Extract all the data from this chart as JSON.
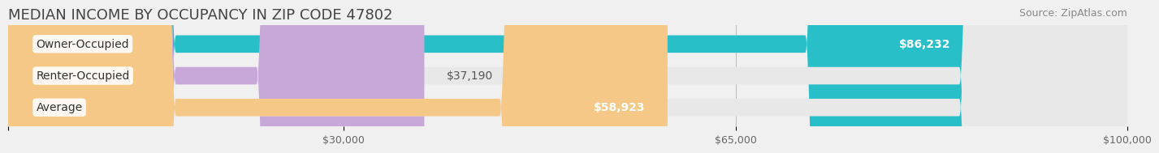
{
  "title": "MEDIAN INCOME BY OCCUPANCY IN ZIP CODE 47802",
  "source": "Source: ZipAtlas.com",
  "categories": [
    "Owner-Occupied",
    "Renter-Occupied",
    "Average"
  ],
  "values": [
    86232,
    37190,
    58923
  ],
  "bar_colors": [
    "#29bfc8",
    "#c8a8d8",
    "#f5c888"
  ],
  "label_colors": [
    "#ffffff",
    "#555555",
    "#555555"
  ],
  "value_labels": [
    "$86,232",
    "$37,190",
    "$58,923"
  ],
  "xlim": [
    0,
    100000
  ],
  "xticks": [
    0,
    30000,
    65000,
    100000
  ],
  "xtick_labels": [
    "",
    "$30,000",
    "$65,000",
    "$100,000"
  ],
  "background_color": "#f0f0f0",
  "bar_background": "#e8e8e8",
  "title_fontsize": 13,
  "source_fontsize": 9,
  "label_fontsize": 10,
  "value_fontsize": 10
}
